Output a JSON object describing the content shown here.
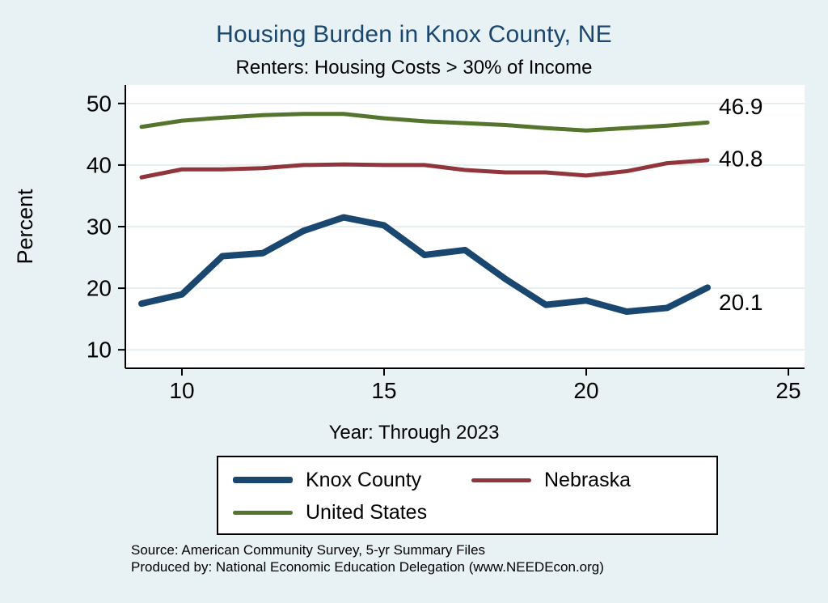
{
  "page": {
    "background": "#e8f1f3"
  },
  "chart_data": {
    "type": "line",
    "title": "Housing Burden in Knox County, NE",
    "subtitle": "Renters: Housing Costs > 30% of Income",
    "title_color": "#1A476F",
    "xlabel": "Year: Through 2023",
    "ylabel": "Percent",
    "xlim": [
      8.6,
      25.4
    ],
    "ylim": [
      7,
      53
    ],
    "xticks": [
      10,
      15,
      20,
      25
    ],
    "yticks": [
      10,
      20,
      30,
      40,
      50
    ],
    "grid": true,
    "grid_color": "#dce9ec",
    "legend_position": "bottom",
    "x": [
      9,
      10,
      11,
      12,
      13,
      14,
      15,
      16,
      17,
      18,
      19,
      20,
      21,
      22,
      23
    ],
    "series": [
      {
        "name": "Knox County",
        "color": "#1A476F",
        "width": 8,
        "values": [
          17.5,
          19.0,
          25.2,
          25.7,
          29.3,
          31.5,
          30.2,
          25.4,
          26.2,
          21.5,
          17.3,
          18.0,
          16.2,
          16.8,
          20.1
        ],
        "end_label": "20.1",
        "label_dy": 18
      },
      {
        "name": "Nebraska",
        "color": "#90353B",
        "width": 5,
        "values": [
          38.0,
          39.3,
          39.3,
          39.5,
          40.0,
          40.1,
          40.0,
          40.0,
          39.2,
          38.8,
          38.8,
          38.3,
          39.0,
          40.3,
          40.8
        ],
        "end_label": "40.8",
        "label_dy": -2
      },
      {
        "name": "United States",
        "color": "#55752F",
        "width": 5,
        "values": [
          46.2,
          47.2,
          47.7,
          48.1,
          48.3,
          48.3,
          47.6,
          47.1,
          46.8,
          46.5,
          46.0,
          45.6,
          46.0,
          46.4,
          46.9
        ],
        "end_label": "46.9",
        "label_dy": -20
      }
    ]
  },
  "footer": {
    "source_line1": "Source: American Community Survey, 5-yr Summary Files",
    "source_line2": "Produced by: National Economic Education Delegation (www.NEEDEcon.org)"
  }
}
